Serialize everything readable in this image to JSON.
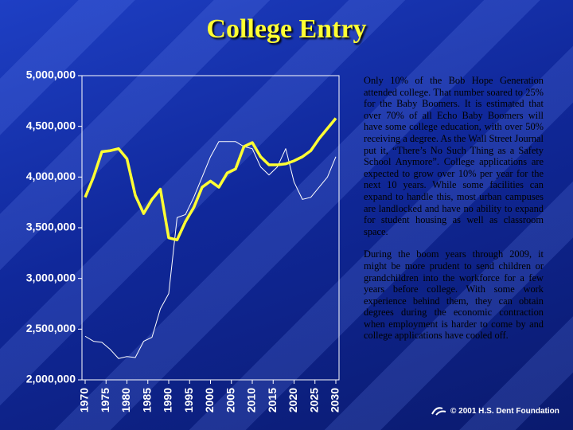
{
  "chart_data": {
    "type": "line",
    "title": "College Entry",
    "x": [
      1970,
      1972,
      1974,
      1976,
      1978,
      1980,
      1982,
      1984,
      1986,
      1988,
      1990,
      1992,
      1994,
      1996,
      1998,
      2000,
      2002,
      2004,
      2006,
      2008,
      2010,
      2012,
      2014,
      2016,
      2018,
      2020,
      2022,
      2024,
      2026,
      2028,
      2030
    ],
    "series": [
      {
        "color": "#ffff33",
        "values": [
          3800000,
          4000000,
          4250000,
          4260000,
          4280000,
          4180000,
          3820000,
          3640000,
          3780000,
          3880000,
          3400000,
          3380000,
          3560000,
          3700000,
          3900000,
          3960000,
          3900000,
          4040000,
          4080000,
          4300000,
          4340000,
          4200000,
          4120000,
          4120000,
          4130000,
          4160000,
          4200000,
          4260000,
          4380000,
          4480000,
          4580000
        ]
      },
      {
        "color": "#ffffff",
        "values": [
          2430000,
          2380000,
          2370000,
          2300000,
          2210000,
          2230000,
          2220000,
          2380000,
          2420000,
          2700000,
          2850000,
          3600000,
          3630000,
          3800000,
          4000000,
          4200000,
          4350000,
          4350000,
          4350000,
          4300000,
          4280000,
          4100000,
          4020000,
          4100000,
          4280000,
          3950000,
          3780000,
          3800000,
          3900000,
          4000000,
          4200000
        ]
      }
    ],
    "xlim": [
      1970,
      2030
    ],
    "xticks": [
      1970,
      1975,
      1980,
      1985,
      1990,
      1995,
      2000,
      2005,
      2010,
      2015,
      2020,
      2025,
      2030
    ],
    "ylim": [
      2000000,
      5000000
    ],
    "yticks": [
      {
        "value": 2000000,
        "label": "2,000,000"
      },
      {
        "value": 2500000,
        "label": "2,500,000"
      },
      {
        "value": 3000000,
        "label": "3,000,000"
      },
      {
        "value": 3500000,
        "label": "3,500,000"
      },
      {
        "value": 4000000,
        "label": "4,000,000"
      },
      {
        "value": 4500000,
        "label": "4,500,000"
      },
      {
        "value": 5000000,
        "label": "5,000,000"
      }
    ],
    "grid": false
  },
  "notes": [
    "Only 10% of the Bob Hope Generation attended college.  That number soared to 25% for the Baby Boomers.  It is estimated that over 70% of all Echo Baby Boomers will have some college education, with over 50% receiving a degree.  As the Wall Street Journal put it, “There’s No Such Thing as a Safety School Anymore”.  College applications are expected to grow over 10% per year for the next 10 years.  While some facilities can expand to handle this, most urban campuses are landlocked and have no ability to expand for student housing as well as classroom space.",
    "During the boom years through 2009, it might be more prudent to send children or grandchildren into the workforce for a few years before college.  With some work experience behind them, they can obtain degrees during the economic contraction when employment is harder to come by and college applications have cooled off."
  ],
  "footer": "© 2001 H.S. Dent Foundation"
}
